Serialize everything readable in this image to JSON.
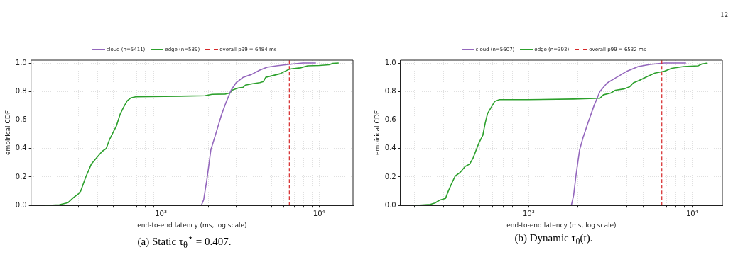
{
  "chart_data": [
    {
      "type": "line",
      "xlabel": "end-to-end latency (ms, log scale)",
      "ylabel": "empirical CDF",
      "log": "x",
      "grid": true,
      "legend": "top",
      "marker": "none",
      "line_style": "solid",
      "xlim": [
        151,
        16390
      ],
      "ylim": [
        0,
        1.02
      ],
      "xticks": [
        {
          "value": 200,
          "label": null
        },
        {
          "value": 300,
          "label": null
        },
        {
          "value": 400,
          "label": null
        },
        {
          "value": 500,
          "label": null
        },
        {
          "value": 600,
          "label": null
        },
        {
          "value": 700,
          "label": null
        },
        {
          "value": 800,
          "label": null
        },
        {
          "value": 900,
          "label": null
        },
        {
          "value": 1000,
          "label": "10³"
        },
        {
          "value": 2000,
          "label": null
        },
        {
          "value": 3000,
          "label": null
        },
        {
          "value": 4000,
          "label": null
        },
        {
          "value": 5000,
          "label": null
        },
        {
          "value": 6000,
          "label": null
        },
        {
          "value": 7000,
          "label": null
        },
        {
          "value": 8000,
          "label": null
        },
        {
          "value": 9000,
          "label": null
        },
        {
          "value": 10000,
          "label": "10⁴"
        }
      ],
      "yticks": [
        {
          "value": 0,
          "label": "0.0"
        },
        {
          "value": 0.2,
          "label": "0.2"
        },
        {
          "value": 0.4,
          "label": "0.4"
        },
        {
          "value": 0.6,
          "label": "0.6"
        },
        {
          "value": 0.8,
          "label": "0.8"
        },
        {
          "value": 1,
          "label": "1.0"
        }
      ],
      "series": [
        {
          "name": "cloud (n=5411)",
          "color": "#9467bd",
          "x": [
            1800,
            1864,
            1964,
            2069,
            2219,
            2421,
            2595,
            2782,
            2981,
            3311,
            3741,
            4221,
            4688,
            5386,
            6412,
            7889,
            9550
          ],
          "values": [
            0,
            0.04,
            0.2,
            0.39,
            0.5,
            0.64,
            0.73,
            0.81,
            0.86,
            0.9,
            0.92,
            0.95,
            0.97,
            0.98,
            0.99,
            1.0,
            1.0
          ]
        },
        {
          "name": "edge (n=589)",
          "color": "#2ca02c",
          "x": [
            186,
            228,
            259,
            280,
            300,
            311,
            335,
            363,
            396,
            425,
            451,
            472,
            497,
            524,
            552,
            581,
            612,
            645,
            692,
            1050,
            1897,
            2104,
            2547,
            2734,
            2831,
            3086,
            3311,
            3427,
            3804,
            4221,
            4445,
            4603,
            5023,
            5673,
            6195,
            6520,
            7623,
            8470,
            10070,
            11560,
            12190,
            13300
          ],
          "values": [
            0,
            0.005,
            0.02,
            0.055,
            0.08,
            0.1,
            0.2,
            0.29,
            0.34,
            0.38,
            0.4,
            0.46,
            0.51,
            0.56,
            0.64,
            0.69,
            0.735,
            0.755,
            0.763,
            0.765,
            0.77,
            0.78,
            0.782,
            0.79,
            0.81,
            0.825,
            0.83,
            0.845,
            0.855,
            0.862,
            0.87,
            0.9,
            0.91,
            0.925,
            0.946,
            0.958,
            0.966,
            0.98,
            0.983,
            0.988,
            0.997,
            1.0
          ]
        }
      ],
      "ref_lines": [
        {
          "axis": "x",
          "value": 6484,
          "label": "overall p99 = 6484 ms",
          "color": "#d62728",
          "line_style": "dashed"
        }
      ],
      "annotations": [
        "(a) Static τ$_{θ}$$^{⋆}$ = 0.407."
      ]
    },
    {
      "type": "line",
      "xlabel": "end-to-end latency (ms, log scale)",
      "ylabel": "empirical CDF",
      "log": "x",
      "grid": true,
      "legend": "top",
      "marker": "none",
      "line_style": "solid",
      "xlim": [
        164,
        15340
      ],
      "ylim": [
        0,
        1.02
      ],
      "xticks": [
        {
          "value": 200,
          "label": null
        },
        {
          "value": 300,
          "label": null
        },
        {
          "value": 400,
          "label": null
        },
        {
          "value": 500,
          "label": null
        },
        {
          "value": 600,
          "label": null
        },
        {
          "value": 700,
          "label": null
        },
        {
          "value": 800,
          "label": null
        },
        {
          "value": 900,
          "label": null
        },
        {
          "value": 1000,
          "label": "10³"
        },
        {
          "value": 2000,
          "label": null
        },
        {
          "value": 3000,
          "label": null
        },
        {
          "value": 4000,
          "label": null
        },
        {
          "value": 5000,
          "label": null
        },
        {
          "value": 6000,
          "label": null
        },
        {
          "value": 7000,
          "label": null
        },
        {
          "value": 8000,
          "label": null
        },
        {
          "value": 9000,
          "label": null
        },
        {
          "value": 10000,
          "label": "10⁴"
        }
      ],
      "yticks": [
        {
          "value": 0,
          "label": "0.0"
        },
        {
          "value": 0.2,
          "label": "0.2"
        },
        {
          "value": 0.4,
          "label": "0.4"
        },
        {
          "value": 0.6,
          "label": "0.6"
        },
        {
          "value": 0.8,
          "label": "0.8"
        },
        {
          "value": 1,
          "label": "1.0"
        }
      ],
      "series": [
        {
          "name": "cloud (n=5607)",
          "color": "#9467bd",
          "x": [
            1824,
            1884,
            1948,
            2050,
            2157,
            2307,
            2512,
            2730,
            3020,
            3459,
            3957,
            4688,
            5546,
            6787,
            9190
          ],
          "values": [
            0,
            0.07,
            0.21,
            0.39,
            0.48,
            0.58,
            0.7,
            0.8,
            0.86,
            0.9,
            0.94,
            0.975,
            0.99,
            1.0,
            1.0
          ]
        },
        {
          "name": "edge (n=393)",
          "color": "#2ca02c",
          "x": [
            200,
            250,
            267,
            285,
            310,
            321,
            338,
            355,
            380,
            409,
            435,
            457,
            481,
            498,
            524,
            542,
            560,
            589,
            619,
            663,
            993,
            1884,
            2730,
            2872,
            3176,
            3397,
            3827,
            4160,
            4378,
            4764,
            5359,
            5927,
            6787,
            7516,
            8896,
            10880,
            11460,
            12450
          ],
          "values": [
            0,
            0.007,
            0.017,
            0.037,
            0.05,
            0.096,
            0.155,
            0.206,
            0.231,
            0.274,
            0.29,
            0.333,
            0.4,
            0.443,
            0.493,
            0.578,
            0.645,
            0.688,
            0.73,
            0.743,
            0.743,
            0.747,
            0.753,
            0.777,
            0.789,
            0.809,
            0.818,
            0.834,
            0.861,
            0.878,
            0.907,
            0.929,
            0.943,
            0.963,
            0.975,
            0.98,
            0.992,
            1.0
          ]
        }
      ],
      "ref_lines": [
        {
          "axis": "x",
          "value": 6532,
          "label": "overall p99 = 6532 ms",
          "color": "#d62728",
          "line_style": "dashed"
        }
      ],
      "annotations": [
        "(b) Dynamic τ$_{θ}$(t).",
        "12"
      ]
    }
  ]
}
